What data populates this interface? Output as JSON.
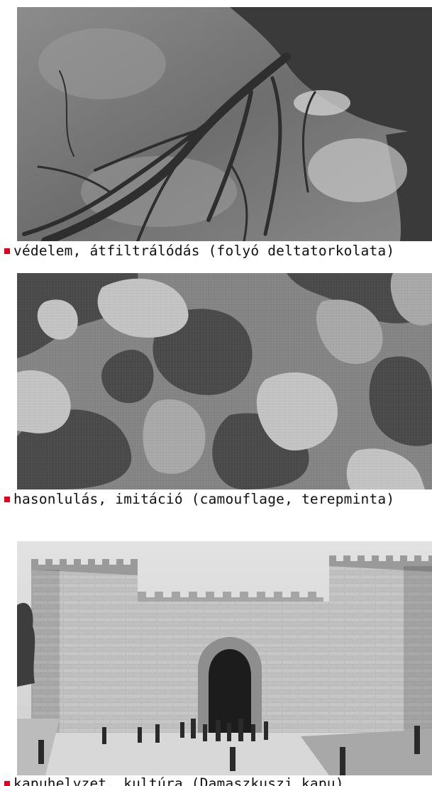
{
  "colors": {
    "bullet": "#e0001b",
    "text": "#111111"
  },
  "figures": [
    {
      "image": "river-delta-aerial-photo",
      "caption": "védelem, átfiltrálódás (folyó deltatorkolata)"
    },
    {
      "image": "camouflage-pattern",
      "caption": "hasonlulás, imitáció (camouflage, terepminta)"
    },
    {
      "image": "damascus-gate-photo",
      "caption": "kapuhelyzet, kultúra (Damaszkuszi kapu)"
    }
  ]
}
